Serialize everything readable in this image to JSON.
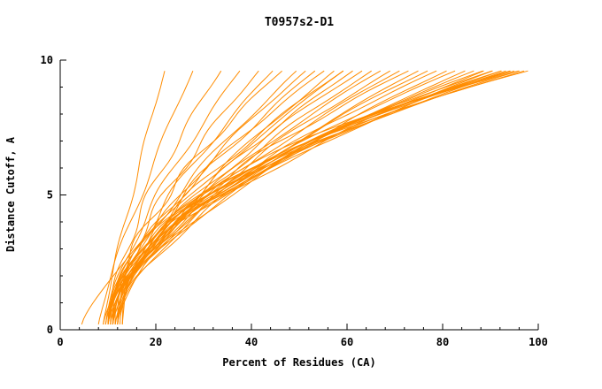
{
  "title": "T0957s2-D1",
  "chart_data": {
    "type": "line",
    "title": "T0957s2-D1",
    "xlabel": "Percent of Residues (CA)",
    "ylabel": "Distance Cutoff, A",
    "xlim": [
      0,
      100
    ],
    "ylim": [
      0,
      10
    ],
    "x_major_ticks": [
      0,
      20,
      40,
      60,
      80,
      100
    ],
    "x_major_tick_labels": [
      "0",
      "20",
      "40",
      "60",
      "80",
      "100"
    ],
    "x_minor_step": 4,
    "y_major_ticks": [
      0,
      5,
      10
    ],
    "y_major_tick_labels": [
      "0",
      "5",
      "10"
    ],
    "y_minor_step": 1,
    "grid": false,
    "legend": "none",
    "line_color": "#ff8c00",
    "axis_color": "#000000",
    "y_start": 0.2,
    "y_end": 9.7,
    "series_format": [
      "x_start_at_y0",
      "x_end_at_y10",
      "curve_power",
      "wobble_amp",
      "wobble_freq",
      "wobble_phase"
    ],
    "series": [
      [
        9.0,
        22,
        1.15,
        0.4,
        1.5,
        0.3
      ],
      [
        8.0,
        28,
        1.2,
        0.5,
        1.4,
        0.7
      ],
      [
        10.0,
        34,
        1.5,
        0.8,
        2.0,
        1.0
      ],
      [
        9.5,
        38,
        1.4,
        0.7,
        1.7,
        2.1
      ],
      [
        10.0,
        42,
        1.45,
        0.9,
        2.2,
        0.5
      ],
      [
        11.0,
        45,
        1.5,
        0.8,
        1.8,
        1.4
      ],
      [
        10.0,
        47,
        1.6,
        1.0,
        2.4,
        2.8
      ],
      [
        9.0,
        50,
        1.4,
        0.9,
        1.6,
        0.9
      ],
      [
        11.0,
        52,
        1.55,
        0.7,
        2.1,
        1.9
      ],
      [
        10.5,
        54,
        1.5,
        1.1,
        1.9,
        0.2
      ],
      [
        10.0,
        56,
        1.6,
        0.8,
        2.3,
        2.5
      ],
      [
        11.5,
        58,
        1.45,
        0.9,
        1.5,
        1.1
      ],
      [
        4.5,
        60,
        1.3,
        0.6,
        1.2,
        0.0
      ],
      [
        9.5,
        60,
        1.55,
        1.0,
        2.0,
        0.7
      ],
      [
        10.0,
        62,
        1.5,
        0.8,
        2.6,
        1.6
      ],
      [
        11.0,
        64,
        1.6,
        1.1,
        1.8,
        2.9
      ],
      [
        10.0,
        66,
        1.5,
        0.9,
        2.2,
        0.4
      ],
      [
        12.0,
        68,
        1.65,
        0.8,
        1.7,
        1.3
      ],
      [
        10.5,
        70,
        1.55,
        1.0,
        2.1,
        2.2
      ],
      [
        11.0,
        72,
        1.6,
        0.9,
        1.9,
        0.8
      ],
      [
        10.0,
        74,
        1.7,
        1.1,
        2.4,
        1.7
      ],
      [
        12.0,
        76,
        1.6,
        0.8,
        1.6,
        2.6
      ],
      [
        11.0,
        78,
        1.65,
        1.0,
        2.0,
        0.1
      ],
      [
        10.0,
        80,
        1.7,
        0.9,
        2.3,
        1.2
      ],
      [
        11.5,
        82,
        1.6,
        1.1,
        1.8,
        2.0
      ],
      [
        10.0,
        84,
        1.75,
        0.8,
        2.1,
        2.9
      ],
      [
        12.0,
        86,
        1.7,
        1.0,
        1.5,
        0.6
      ],
      [
        11.0,
        88,
        1.8,
        0.9,
        2.2,
        1.5
      ],
      [
        10.0,
        90,
        1.7,
        1.1,
        1.9,
        2.4
      ],
      [
        11.0,
        90,
        1.9,
        0.8,
        2.5,
        0.3
      ],
      [
        12.0,
        92,
        1.8,
        1.0,
        1.7,
        1.1
      ],
      [
        10.5,
        92,
        2.0,
        0.9,
        2.0,
        2.0
      ],
      [
        11.0,
        94,
        1.9,
        1.1,
        2.3,
        2.8
      ],
      [
        12.5,
        94,
        2.1,
        0.8,
        1.6,
        0.5
      ],
      [
        10.0,
        95,
        2.0,
        1.0,
        2.1,
        1.4
      ],
      [
        11.0,
        96,
        2.2,
        0.9,
        1.8,
        2.3
      ],
      [
        12.0,
        96,
        2.0,
        1.1,
        2.4,
        0.9
      ],
      [
        13.0,
        97,
        2.3,
        0.8,
        1.9,
        1.8
      ],
      [
        11.5,
        98,
        2.1,
        1.0,
        2.2,
        2.7
      ],
      [
        12.0,
        98,
        2.4,
        0.9,
        1.5,
        0.2
      ],
      [
        13.0,
        99,
        2.2,
        1.1,
        2.0,
        1.0
      ],
      [
        12.0,
        100,
        2.3,
        0.8,
        2.3,
        1.9
      ]
    ]
  }
}
